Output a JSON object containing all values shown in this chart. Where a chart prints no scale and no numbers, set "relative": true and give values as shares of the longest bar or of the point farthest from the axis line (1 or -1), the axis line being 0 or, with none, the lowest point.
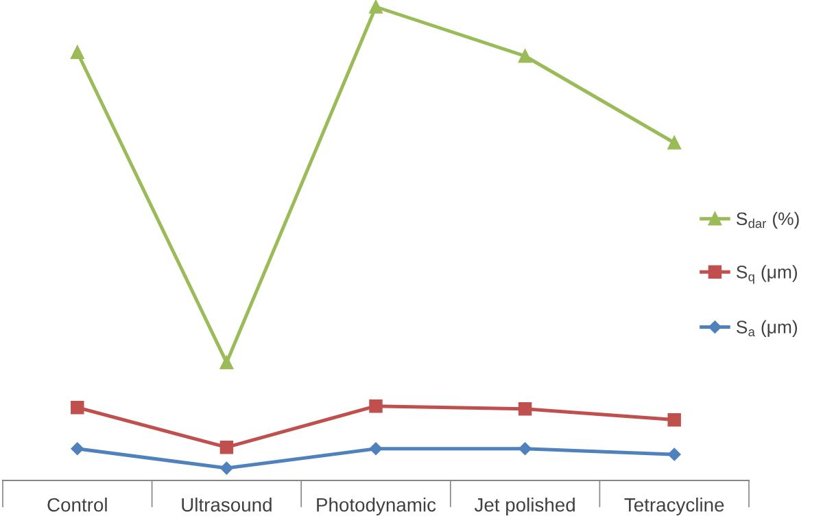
{
  "chart_data": {
    "type": "line",
    "relative": true,
    "categories": [
      "Control",
      "Ultrasound",
      "Photodynamic",
      "Jet polished",
      "Tetracycline"
    ],
    "legend": "right",
    "grid": false,
    "series": [
      {
        "name": "S$_{dar}$ (%)",
        "color": "#9bbb59",
        "marker": "triangle",
        "values": [
          0.904,
          0.249,
          1.0,
          0.896,
          0.713
        ]
      },
      {
        "name": "S$_{q}$ (μm)",
        "color": "#c0504d",
        "marker": "square",
        "values": [
          0.154,
          0.07,
          0.157,
          0.151,
          0.128
        ]
      },
      {
        "name": "S$_{a}$ (μm)",
        "color": "#4f81bd",
        "marker": "diamond",
        "values": [
          0.067,
          0.026,
          0.067,
          0.067,
          0.055
        ]
      }
    ]
  }
}
